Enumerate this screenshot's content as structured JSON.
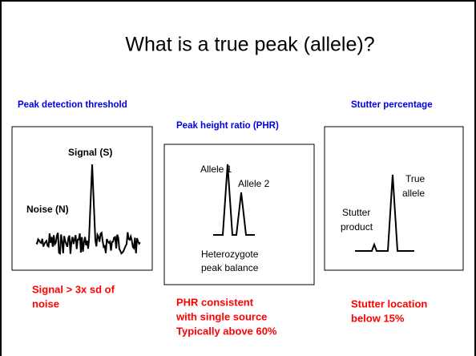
{
  "title": "What is a true peak (allele)?",
  "panels": [
    {
      "heading": "Peak detection threshold",
      "labels": [
        "Signal (S)",
        "Noise (N)"
      ],
      "caption": [
        "Signal > 3x sd of",
        "noise"
      ]
    },
    {
      "heading": "Peak height ratio (PHR)",
      "labels": [
        "Allele 1",
        "Allele 2",
        "Heterozygote",
        "peak balance"
      ],
      "caption": [
        "PHR consistent",
        "with single source",
        "Typically above 60%"
      ]
    },
    {
      "heading": "Stutter percentage",
      "labels": [
        "True",
        "allele",
        "Stutter",
        "product"
      ],
      "caption": [
        "Stutter location",
        "below 15%"
      ]
    }
  ]
}
